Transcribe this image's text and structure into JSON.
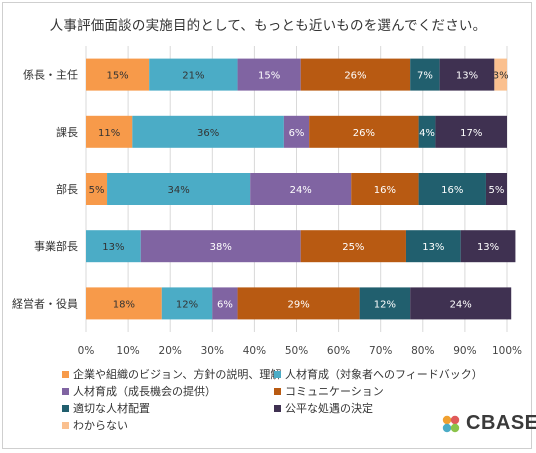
{
  "title": "人事評価面談の実施目的として、もっとも近いものを選んでください。",
  "logo": {
    "text": "CBASE"
  },
  "chart_data": {
    "type": "bar",
    "orientation": "horizontal",
    "stacked": true,
    "categories": [
      "係長・主任",
      "課長",
      "部長",
      "事業部長",
      "経営者・役員"
    ],
    "xlim": [
      0,
      100
    ],
    "x_ticks": [
      "0%",
      "10%",
      "20%",
      "30%",
      "40%",
      "50%",
      "60%",
      "70%",
      "80%",
      "90%",
      "100%"
    ],
    "grid": true,
    "legend_position": "bottom",
    "series": [
      {
        "name": "企業や組織のビジョン、方針の説明、理解",
        "color": "#f79a4a",
        "values": [
          15,
          11,
          5,
          0,
          18
        ],
        "labels": [
          "15%",
          "11%",
          "5%",
          "",
          "18%"
        ]
      },
      {
        "name": "人材育成（対象者へのフィードバック）",
        "color": "#4bacc6",
        "values": [
          21,
          36,
          34,
          13,
          12
        ],
        "labels": [
          "21%",
          "36%",
          "34%",
          "13%",
          "12%"
        ]
      },
      {
        "name": "人材育成（成長機会の提供）",
        "color": "#8064a2",
        "values": [
          15,
          6,
          24,
          38,
          6
        ],
        "labels": [
          "15%",
          "6%",
          "24%",
          "38%",
          "6%"
        ]
      },
      {
        "name": "コミュニケーション",
        "color": "#b85a12",
        "values": [
          26,
          26,
          16,
          25,
          29
        ],
        "labels": [
          "26%",
          "26%",
          "16%",
          "25%",
          "29%"
        ]
      },
      {
        "name": "適切な人材配置",
        "color": "#215f6e",
        "values": [
          7,
          4,
          16,
          13,
          12
        ],
        "labels": [
          "7%",
          "4%",
          "16%",
          "13%",
          "12%"
        ]
      },
      {
        "name": "公平な処遇の決定",
        "color": "#3f3151",
        "values": [
          13,
          17,
          5,
          13,
          24
        ],
        "labels": [
          "13%",
          "17%",
          "5%",
          "13%",
          "24%"
        ]
      },
      {
        "name": "わからない",
        "color": "#fac08f",
        "values": [
          3,
          0,
          0,
          0,
          0
        ],
        "labels": [
          "3%",
          "",
          "",
          "",
          ""
        ]
      }
    ]
  }
}
